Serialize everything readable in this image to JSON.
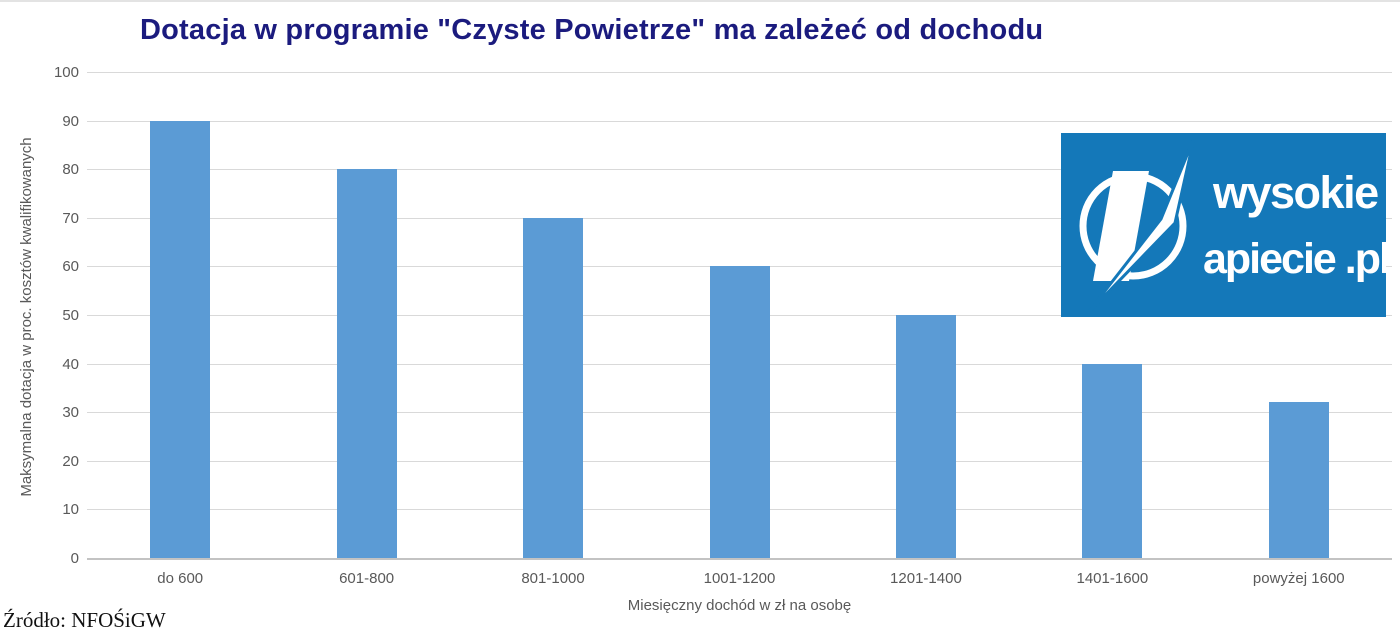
{
  "title": "Dotacja w programie \"Czyste Powietrze\" ma zależeć od dochodu",
  "source": "Źródło: NFOŚiGW",
  "logo": {
    "line1": "wysokie",
    "line2": "apiecie .pl",
    "bg_color": "#1478b9",
    "text_color": "#ffffff"
  },
  "colors": {
    "title": "#1b1b7e",
    "tick_text": "#595959",
    "bar": "#5b9bd5",
    "gridline": "#d9d9d9",
    "axis_line": "#c3c3c3"
  },
  "chart_data": {
    "type": "bar",
    "title": "Dotacja w programie \"Czyste Powietrze\" ma zależeć od dochodu",
    "categories": [
      "do 600",
      "601-800",
      "801-1000",
      "1001-1200",
      "1201-1400",
      "1401-1600",
      "powyżej 1600"
    ],
    "values": [
      90,
      80,
      70,
      60,
      50,
      40,
      32
    ],
    "xlabel": "Miesięczny dochód w zł na osobę",
    "ylabel": "Maksymalna dotacja w proc. kosztów kwalifikowanych",
    "ylim": [
      0,
      100
    ],
    "ytick_step": 10,
    "grid": "horizontal",
    "legend": "none",
    "bar_color": "#5b9bd5"
  }
}
